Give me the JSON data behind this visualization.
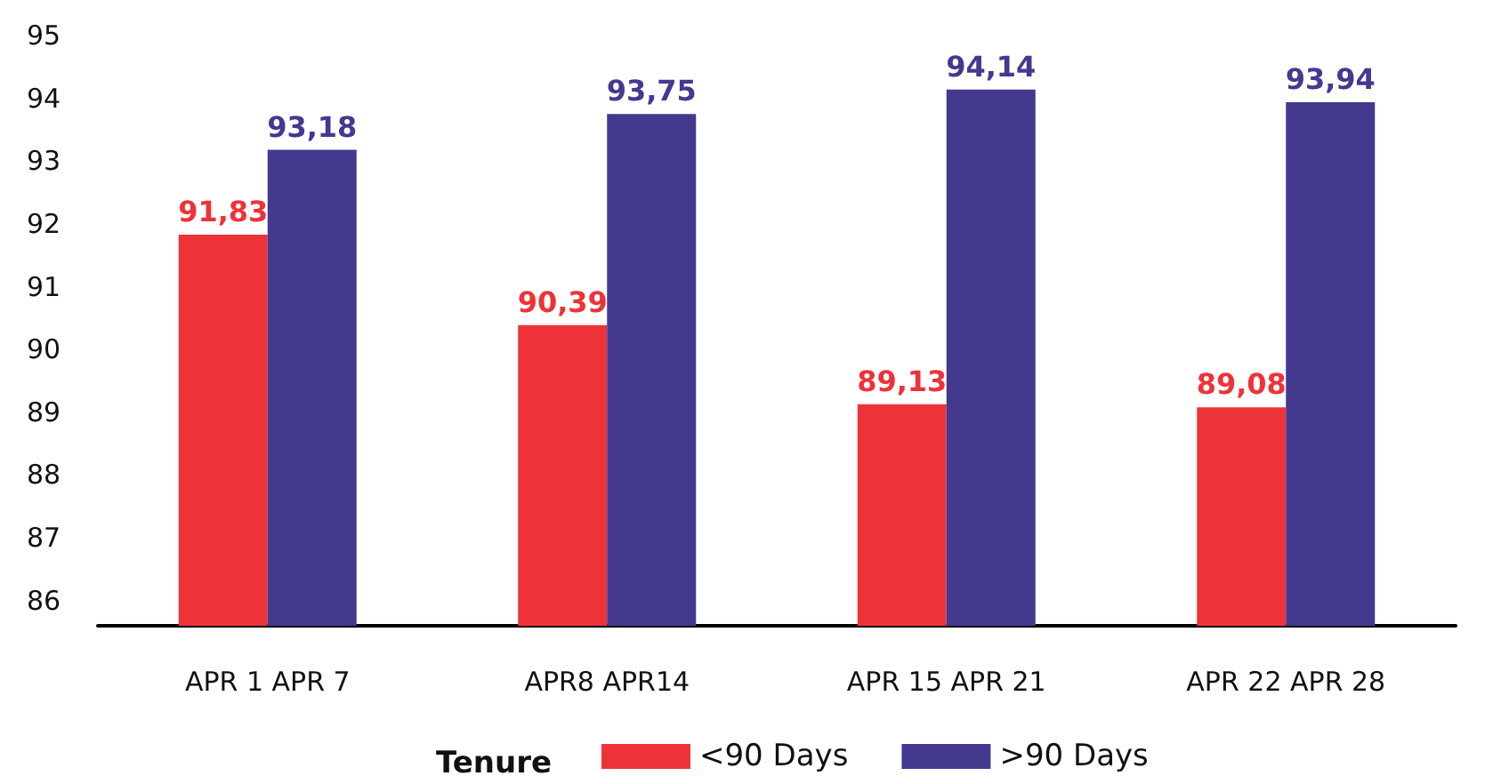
{
  "chart_data": {
    "type": "bar",
    "categories": [
      "APR 1 APR 7",
      "APR8 APR14",
      "APR 15 APR 21",
      "APR 22 APR 28"
    ],
    "series": [
      {
        "name": "<90 Days",
        "color": "#ee3338",
        "values": [
          91.83,
          90.39,
          89.13,
          89.08
        ],
        "value_labels": [
          "91,83",
          "90,39",
          "89,13",
          "89,08"
        ]
      },
      {
        "name": ">90 Days",
        "color": "#43398f",
        "values": [
          93.18,
          93.75,
          94.14,
          93.94
        ],
        "value_labels": [
          "93,18",
          "93,75",
          "94,14",
          "93,94"
        ]
      }
    ],
    "ylim": [
      85.6,
      95
    ],
    "yticks": [
      86,
      87,
      88,
      89,
      90,
      91,
      92,
      93,
      94,
      95
    ],
    "grid": false,
    "legend": "bottom",
    "legend_title": "Tenure"
  }
}
